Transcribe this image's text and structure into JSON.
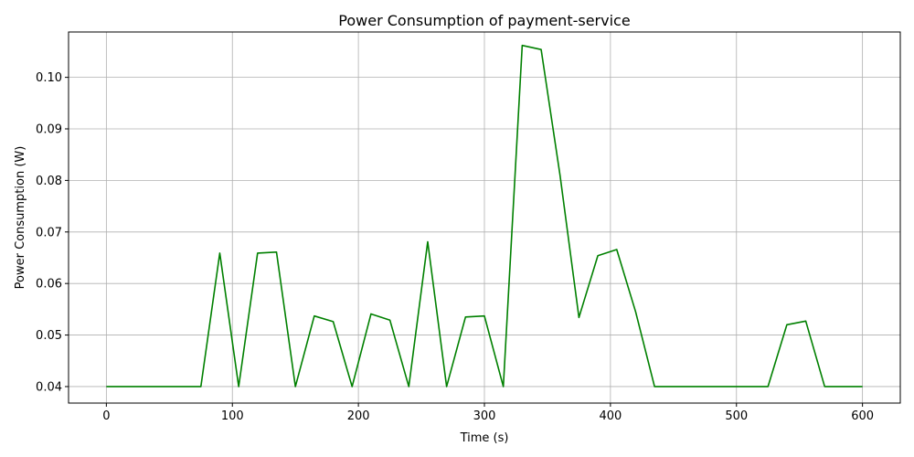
{
  "chart_data": {
    "type": "line",
    "title": "Power Consumption of payment-service",
    "xlabel": "Time (s)",
    "ylabel": "Power Consumption (W)",
    "xlim": [
      -30,
      630
    ],
    "ylim": [
      0.0368,
      0.1088
    ],
    "x_ticks": [
      0,
      100,
      200,
      300,
      400,
      500,
      600
    ],
    "y_ticks": [
      0.04,
      0.05,
      0.06,
      0.07,
      0.08,
      0.09,
      0.1
    ],
    "x_tick_labels": [
      "0",
      "100",
      "200",
      "300",
      "400",
      "500",
      "600"
    ],
    "y_tick_labels": [
      "0.04",
      "0.05",
      "0.06",
      "0.07",
      "0.08",
      "0.09",
      "0.10"
    ],
    "grid": true,
    "line_color": "#008000",
    "series": [
      {
        "x": [
          0,
          15,
          30,
          45,
          60,
          75,
          90,
          105,
          120,
          135,
          150,
          165,
          180,
          195,
          210,
          225,
          240,
          255,
          270,
          285,
          300,
          315,
          330,
          345,
          360,
          375,
          390,
          405,
          420,
          435,
          450,
          465,
          480,
          495,
          510,
          525,
          540,
          555,
          570,
          585,
          600
        ],
        "values": [
          0.04,
          0.04,
          0.04,
          0.04,
          0.04,
          0.04,
          0.0659,
          0.04,
          0.0659,
          0.0661,
          0.04,
          0.0537,
          0.0526,
          0.04,
          0.0541,
          0.0529,
          0.04,
          0.0681,
          0.04,
          0.0535,
          0.0537,
          0.04,
          0.1062,
          0.1054,
          0.081,
          0.0534,
          0.0654,
          0.0666,
          0.0545,
          0.04,
          0.04,
          0.04,
          0.04,
          0.04,
          0.04,
          0.04,
          0.052,
          0.0527,
          0.04,
          0.04,
          0.04
        ]
      }
    ]
  }
}
